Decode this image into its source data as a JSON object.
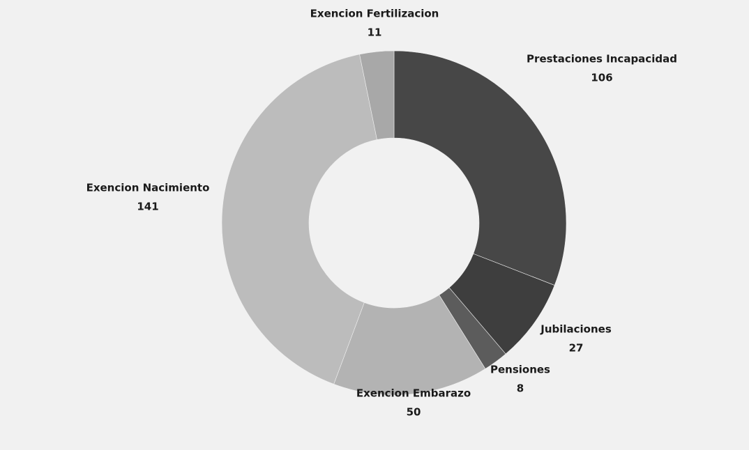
{
  "chart_data": {
    "type": "donut",
    "categories": [
      "Prestaciones Incapacidad",
      "Jubilaciones",
      "Pensiones",
      "Exencion Embarazo",
      "Exencion Nacimiento",
      "Exencion Fertilizacion"
    ],
    "values": [
      106,
      27,
      8,
      50,
      141,
      11
    ],
    "colors": [
      "#474747",
      "#3e3e3e",
      "#5c5c5c",
      "#b3b3b3",
      "#bcbcbc",
      "#a8a8a8"
    ]
  }
}
